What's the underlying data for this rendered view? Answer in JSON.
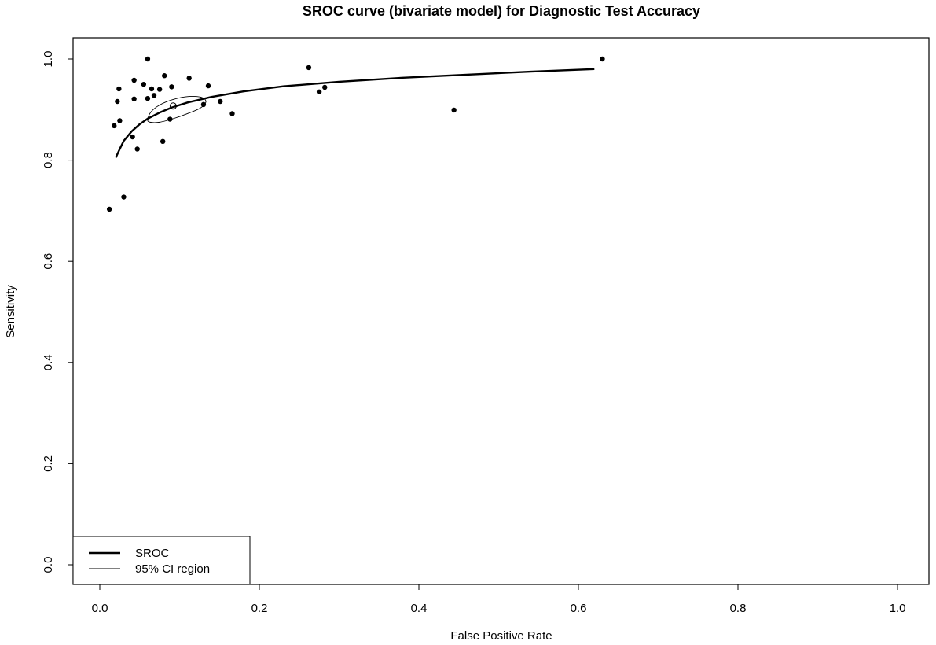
{
  "chart_data": {
    "type": "scatter",
    "title": "SROC curve (bivariate model) for Diagnostic Test Accuracy",
    "xlabel": "False Positive Rate",
    "ylabel": "Sensitivity",
    "xlim": [
      0.0,
      1.0
    ],
    "ylim": [
      0.0,
      1.0
    ],
    "xticks": [
      "0.0",
      "0.2",
      "0.4",
      "0.6",
      "0.8",
      "1.0"
    ],
    "yticks": [
      "0.0",
      "0.2",
      "0.4",
      "0.6",
      "0.8",
      "1.0"
    ],
    "grid": false,
    "legend": {
      "placement": "bottom-left",
      "entries": [
        {
          "label": "SROC",
          "style": "thick-line"
        },
        {
          "label": "95% CI region",
          "style": "thin-line"
        }
      ]
    },
    "series": [
      {
        "kind": "points",
        "points": [
          [
            0.06,
            1.0
          ],
          [
            0.63,
            1.0
          ],
          [
            0.262,
            0.983
          ],
          [
            0.081,
            0.967
          ],
          [
            0.112,
            0.962
          ],
          [
            0.043,
            0.958
          ],
          [
            0.055,
            0.95
          ],
          [
            0.136,
            0.947
          ],
          [
            0.09,
            0.945
          ],
          [
            0.282,
            0.944
          ],
          [
            0.024,
            0.941
          ],
          [
            0.065,
            0.941
          ],
          [
            0.075,
            0.94
          ],
          [
            0.275,
            0.935
          ],
          [
            0.068,
            0.928
          ],
          [
            0.06,
            0.922
          ],
          [
            0.043,
            0.921
          ],
          [
            0.022,
            0.916
          ],
          [
            0.151,
            0.916
          ],
          [
            0.13,
            0.91
          ],
          [
            0.166,
            0.892
          ],
          [
            0.444,
            0.899
          ],
          [
            0.088,
            0.881
          ],
          [
            0.025,
            0.878
          ],
          [
            0.018,
            0.868
          ],
          [
            0.041,
            0.846
          ],
          [
            0.079,
            0.837
          ],
          [
            0.047,
            0.822
          ],
          [
            0.03,
            0.727
          ],
          [
            0.012,
            0.703
          ]
        ]
      },
      {
        "name": "SROC",
        "kind": "curve",
        "points": [
          [
            0.02,
            0.805
          ],
          [
            0.025,
            0.822
          ],
          [
            0.03,
            0.838
          ],
          [
            0.04,
            0.857
          ],
          [
            0.05,
            0.871
          ],
          [
            0.06,
            0.882
          ],
          [
            0.075,
            0.894
          ],
          [
            0.09,
            0.904
          ],
          [
            0.11,
            0.914
          ],
          [
            0.14,
            0.925
          ],
          [
            0.18,
            0.936
          ],
          [
            0.23,
            0.946
          ],
          [
            0.3,
            0.955
          ],
          [
            0.38,
            0.963
          ],
          [
            0.46,
            0.969
          ],
          [
            0.54,
            0.975
          ],
          [
            0.62,
            0.98
          ]
        ]
      },
      {
        "name": "95% CI region",
        "kind": "ellipse",
        "center": [
          0.092,
          0.907
        ],
        "outline": [
          [
            0.06,
            0.88
          ],
          [
            0.064,
            0.895
          ],
          [
            0.075,
            0.909
          ],
          [
            0.092,
            0.92
          ],
          [
            0.112,
            0.926
          ],
          [
            0.128,
            0.924
          ],
          [
            0.133,
            0.915
          ],
          [
            0.126,
            0.903
          ],
          [
            0.11,
            0.892
          ],
          [
            0.092,
            0.882
          ],
          [
            0.075,
            0.875
          ],
          [
            0.063,
            0.875
          ]
        ]
      }
    ]
  }
}
